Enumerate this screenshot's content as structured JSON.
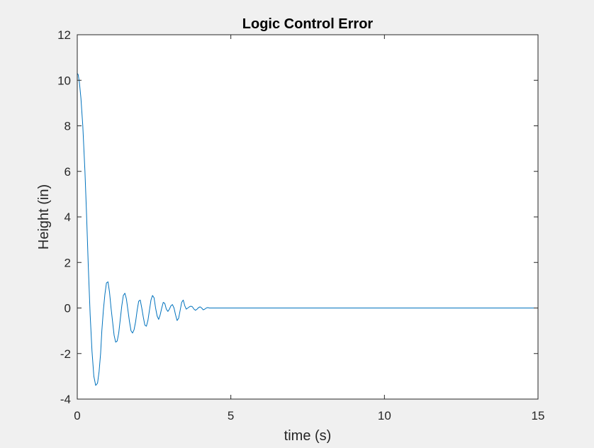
{
  "chart_data": {
    "type": "line",
    "title": "Logic Control Error",
    "xlabel": "time (s)",
    "ylabel": "Height (in)",
    "xlim": [
      0,
      15
    ],
    "ylim": [
      -4,
      12
    ],
    "xticks": [
      0,
      5,
      10,
      15
    ],
    "yticks": [
      -4,
      -2,
      0,
      2,
      4,
      6,
      8,
      10,
      12
    ],
    "xtick_labels": [
      "0",
      "5",
      "10",
      "15"
    ],
    "ytick_labels": [
      "-4",
      "-2",
      "0",
      "2",
      "4",
      "6",
      "8",
      "10",
      "12"
    ],
    "grid": false,
    "legend": "none",
    "series": [
      {
        "color": "#0072bd",
        "x": [
          0.0,
          0.03,
          0.07,
          0.12,
          0.18,
          0.25,
          0.3,
          0.36,
          0.42,
          0.48,
          0.54,
          0.6,
          0.66,
          0.71,
          0.76,
          0.8,
          0.85,
          0.9,
          0.95,
          1.0,
          1.05,
          1.1,
          1.15,
          1.2,
          1.25,
          1.3,
          1.35,
          1.4,
          1.45,
          1.5,
          1.55,
          1.6,
          1.65,
          1.7,
          1.75,
          1.8,
          1.85,
          1.9,
          1.95,
          2.0,
          2.05,
          2.1,
          2.15,
          2.2,
          2.25,
          2.3,
          2.35,
          2.4,
          2.45,
          2.5,
          2.55,
          2.6,
          2.65,
          2.7,
          2.75,
          2.8,
          2.85,
          2.9,
          2.95,
          3.0,
          3.05,
          3.1,
          3.15,
          3.2,
          3.25,
          3.3,
          3.35,
          3.4,
          3.45,
          3.5,
          3.55,
          3.6,
          3.65,
          3.7,
          3.75,
          3.8,
          3.85,
          3.9,
          3.95,
          4.0,
          4.05,
          4.1,
          4.15,
          4.2,
          4.25,
          4.3,
          4.35,
          4.4,
          4.45,
          4.5,
          6.0,
          8.0,
          10.0,
          12.0,
          15.0
        ],
        "values": [
          10.3,
          10.25,
          9.9,
          9.2,
          8.0,
          6.0,
          4.2,
          1.8,
          -0.3,
          -1.9,
          -3.0,
          -3.4,
          -3.3,
          -2.8,
          -2.0,
          -1.0,
          -0.1,
          0.6,
          1.1,
          1.15,
          0.7,
          0.0,
          -0.6,
          -1.2,
          -1.5,
          -1.45,
          -1.1,
          -0.5,
          0.1,
          0.55,
          0.65,
          0.4,
          -0.1,
          -0.6,
          -1.0,
          -1.1,
          -0.95,
          -0.6,
          -0.1,
          0.3,
          0.35,
          0.0,
          -0.4,
          -0.75,
          -0.8,
          -0.55,
          -0.1,
          0.35,
          0.55,
          0.45,
          0.0,
          -0.35,
          -0.5,
          -0.3,
          0.0,
          0.25,
          0.2,
          -0.05,
          -0.15,
          -0.05,
          0.1,
          0.15,
          0.0,
          -0.3,
          -0.55,
          -0.45,
          -0.1,
          0.25,
          0.35,
          0.1,
          -0.05,
          0.0,
          0.05,
          0.08,
          0.05,
          -0.05,
          -0.1,
          -0.05,
          0.02,
          0.05,
          0.0,
          -0.08,
          -0.05,
          0.0,
          0.02,
          0.0,
          0.0,
          0.0,
          0.0,
          0.0,
          0.0,
          0.0,
          0.0,
          0.0,
          0.0
        ]
      }
    ]
  }
}
